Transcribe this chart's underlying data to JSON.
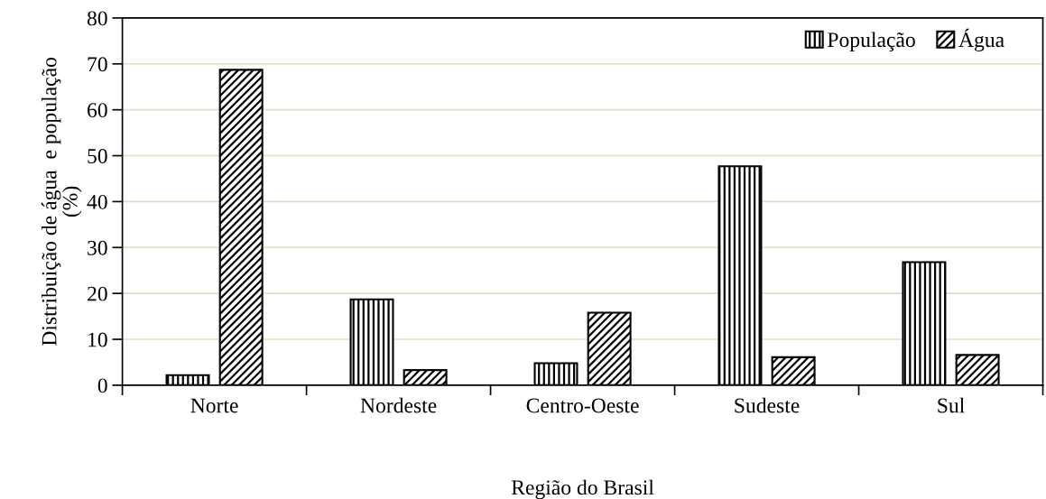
{
  "chart_data": {
    "type": "bar",
    "xlabel": "Região do Brasil",
    "ylabel": "Distribuição de água  e população\n(%)",
    "categories": [
      "Norte",
      "Nordeste",
      "Centro-Oeste",
      "Sudeste",
      "Sul"
    ],
    "series": [
      {
        "name": "População",
        "color": "#000000",
        "values": [
          2.2,
          18.7,
          4.8,
          47.7,
          26.8
        ]
      },
      {
        "name": "Água",
        "color": "#000000",
        "values": [
          68.7,
          3.3,
          15.8,
          6.1,
          6.6
        ]
      }
    ],
    "ylim": [
      0,
      80
    ],
    "yticks": [
      0,
      10,
      20,
      30,
      40,
      50,
      60,
      70,
      80
    ],
    "grid": "y",
    "legend": "top right"
  }
}
